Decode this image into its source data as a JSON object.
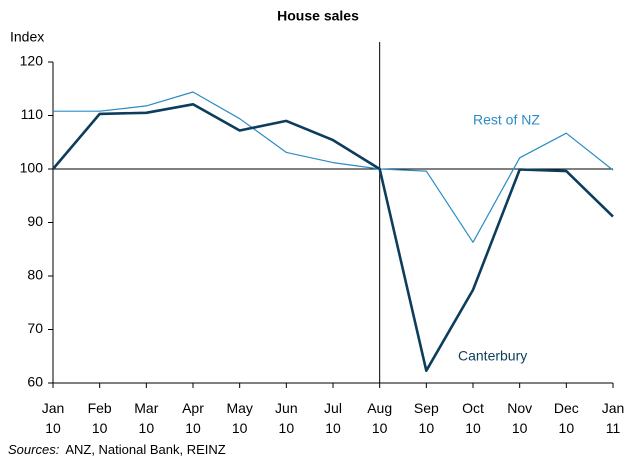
{
  "chart_data": {
    "type": "line",
    "title": "House sales",
    "y_label": "Index",
    "categories": [
      "Jan 10",
      "Feb 10",
      "Mar 10",
      "Apr 10",
      "May 10",
      "Jun 10",
      "Jul 10",
      "Aug 10",
      "Sep 10",
      "Oct 10",
      "Nov 10",
      "Dec 10",
      "Jan 11"
    ],
    "series": [
      {
        "name": "Rest of NZ",
        "color": "#2b8cc4",
        "width": 1.2,
        "values": [
          110.8,
          110.8,
          111.8,
          114.4,
          109.4,
          103.1,
          101.2,
          100,
          99.6,
          86.3,
          102.1,
          106.7,
          99.8
        ]
      },
      {
        "name": "Canterbury",
        "color": "#0d3d5c",
        "width": 2.6,
        "values": [
          100,
          110.3,
          110.5,
          112.1,
          107.2,
          109,
          105.4,
          100,
          62.3,
          77.4,
          99.9,
          99.6,
          91.1
        ]
      }
    ],
    "ylim": [
      60,
      120
    ],
    "yticks": [
      60,
      70,
      80,
      90,
      100,
      110,
      120
    ],
    "hline": 100,
    "vline": "Aug 10",
    "grid": false,
    "source_label": "Sources:",
    "source": "ANZ, National Bank, REINZ"
  }
}
